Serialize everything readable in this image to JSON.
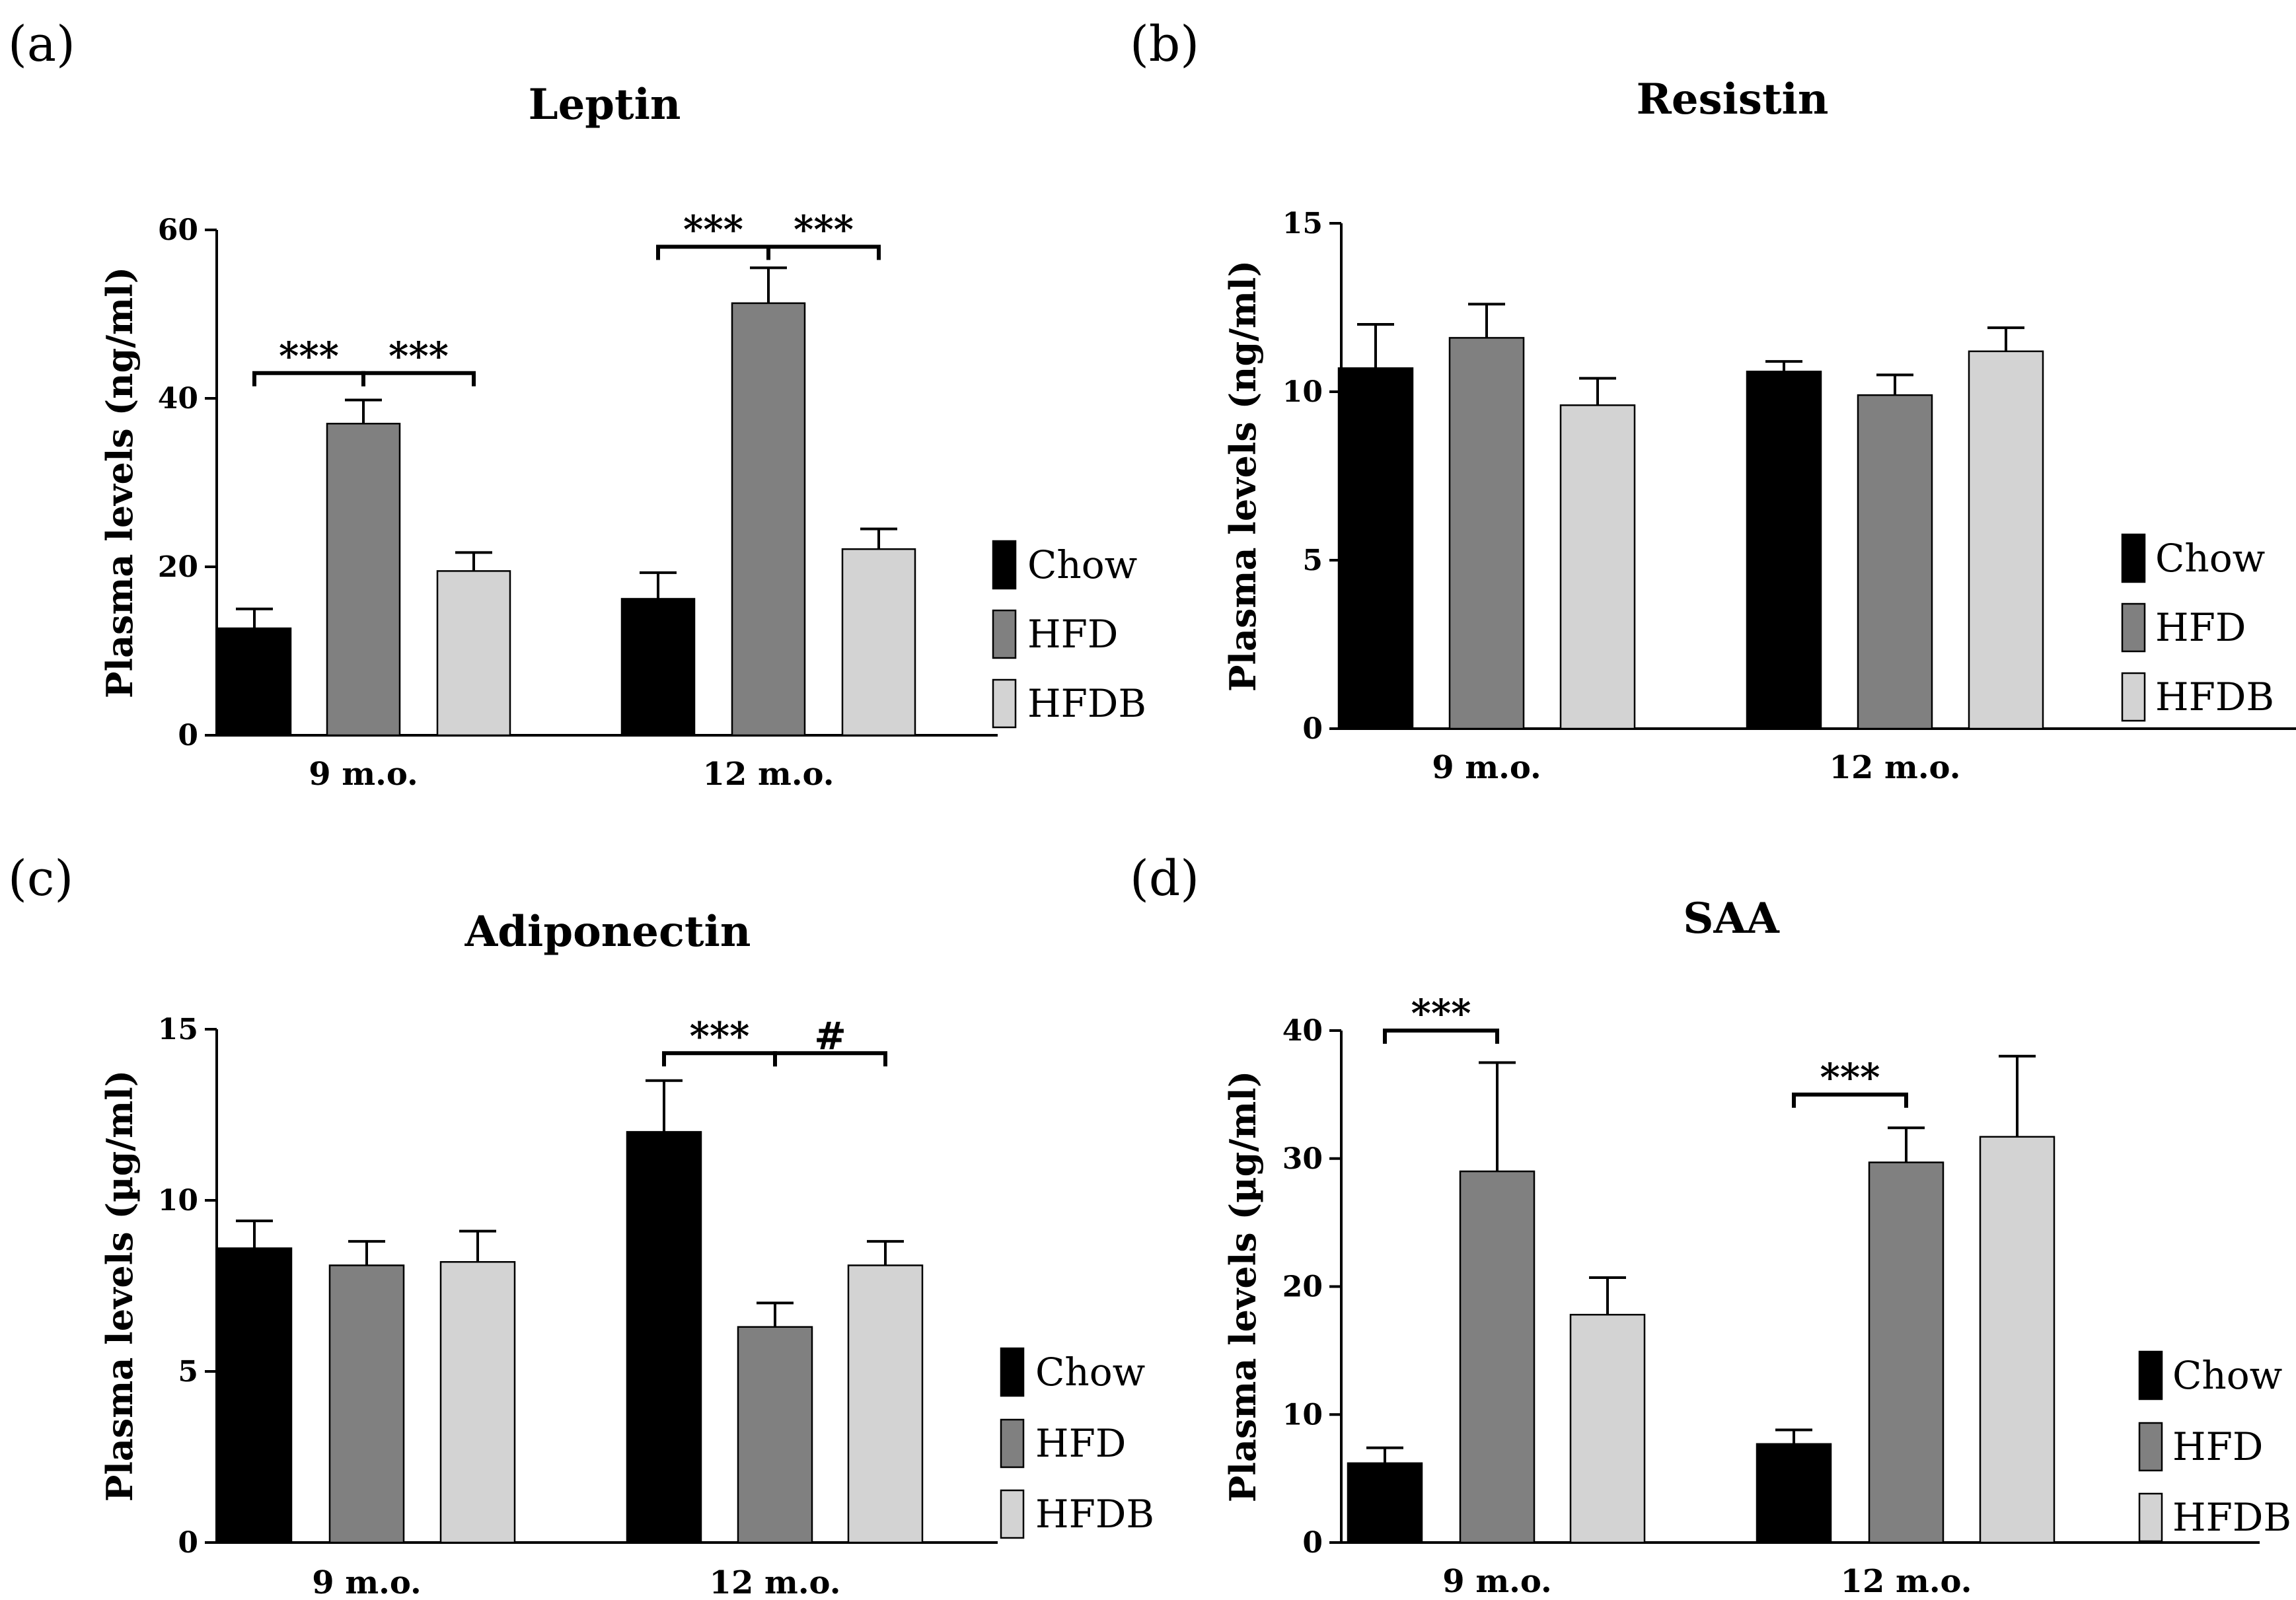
{
  "colors": {
    "Chow": "#000000",
    "HFD": "#808080",
    "HFDB": "#d3d3d3",
    "axis": "#000000"
  },
  "chart_data": [
    {
      "type": "bar",
      "panel_letter": "(a)",
      "title": "Leptin",
      "ylabel": "Plasma levels (ng/ml)",
      "ylim": [
        0,
        60
      ],
      "yticks": [
        "0",
        "20",
        "40",
        "60"
      ],
      "categories": [
        "9 m.o.",
        "12 m.o."
      ],
      "series": [
        {
          "name": "Chow",
          "values": [
            12.7,
            16.2
          ],
          "errors": [
            2.3,
            3.1
          ]
        },
        {
          "name": "HFD",
          "values": [
            37.0,
            51.3
          ],
          "errors": [
            2.8,
            4.2
          ]
        },
        {
          "name": "HFDB",
          "values": [
            19.5,
            22.1
          ],
          "errors": [
            2.2,
            2.4
          ]
        }
      ],
      "significance": [
        {
          "category": 0,
          "from": 0,
          "to": 1,
          "label": "***",
          "level": 43
        },
        {
          "category": 0,
          "from": 1,
          "to": 2,
          "label": "***",
          "level": 43
        },
        {
          "category": 1,
          "from": 0,
          "to": 1,
          "label": "***",
          "level": 58
        },
        {
          "category": 1,
          "from": 1,
          "to": 2,
          "label": "***",
          "level": 58
        }
      ]
    },
    {
      "type": "bar",
      "panel_letter": "(b)",
      "title": "Resistin",
      "ylabel": "Plasma levels (ng/ml)",
      "ylim": [
        0,
        15
      ],
      "yticks": [
        "0",
        "5",
        "10",
        "15"
      ],
      "categories": [
        "9 m.o.",
        "12 m.o."
      ],
      "series": [
        {
          "name": "Chow",
          "values": [
            10.7,
            10.6
          ],
          "errors": [
            1.3,
            0.3
          ]
        },
        {
          "name": "HFD",
          "values": [
            11.6,
            9.9
          ],
          "errors": [
            1.0,
            0.6
          ]
        },
        {
          "name": "HFDB",
          "values": [
            9.6,
            11.2
          ],
          "errors": [
            0.8,
            0.7
          ]
        }
      ],
      "significance": []
    },
    {
      "type": "bar",
      "panel_letter": "(c)",
      "title": "Adiponectin",
      "ylabel": "Plasma levels (µg/ml)",
      "ylim": [
        0,
        15
      ],
      "yticks": [
        "0",
        "5",
        "10",
        "15"
      ],
      "categories": [
        "9 m.o.",
        "12 m.o."
      ],
      "series": [
        {
          "name": "Chow",
          "values": [
            8.6,
            12.0
          ],
          "errors": [
            0.8,
            1.5
          ]
        },
        {
          "name": "HFD",
          "values": [
            8.1,
            6.3
          ],
          "errors": [
            0.7,
            0.7
          ]
        },
        {
          "name": "HFDB",
          "values": [
            8.2,
            8.1
          ],
          "errors": [
            0.9,
            0.7
          ]
        }
      ],
      "significance": [
        {
          "category": 1,
          "from": 0,
          "to": 1,
          "label": "***",
          "level": 14.3
        },
        {
          "category": 1,
          "from": 1,
          "to": 2,
          "label": "#",
          "level": 14.3
        }
      ]
    },
    {
      "type": "bar",
      "panel_letter": "(d)",
      "title": "SAA",
      "ylabel": "Plasma levels (µg/ml)",
      "ylim": [
        0,
        40
      ],
      "yticks": [
        "0",
        "10",
        "20",
        "30",
        "40"
      ],
      "categories": [
        "9 m.o.",
        "12 m.o."
      ],
      "series": [
        {
          "name": "Chow",
          "values": [
            6.2,
            7.7
          ],
          "errors": [
            1.2,
            1.1
          ]
        },
        {
          "name": "HFD",
          "values": [
            29.0,
            29.7
          ],
          "errors": [
            8.5,
            2.7
          ]
        },
        {
          "name": "HFDB",
          "values": [
            17.8,
            31.7
          ],
          "errors": [
            2.9,
            6.3
          ]
        }
      ],
      "significance": [
        {
          "category": 0,
          "from": 0,
          "to": 1,
          "label": "***",
          "level": 40
        },
        {
          "category": 1,
          "from": 0,
          "to": 1,
          "label": "***",
          "level": 35
        }
      ]
    }
  ]
}
